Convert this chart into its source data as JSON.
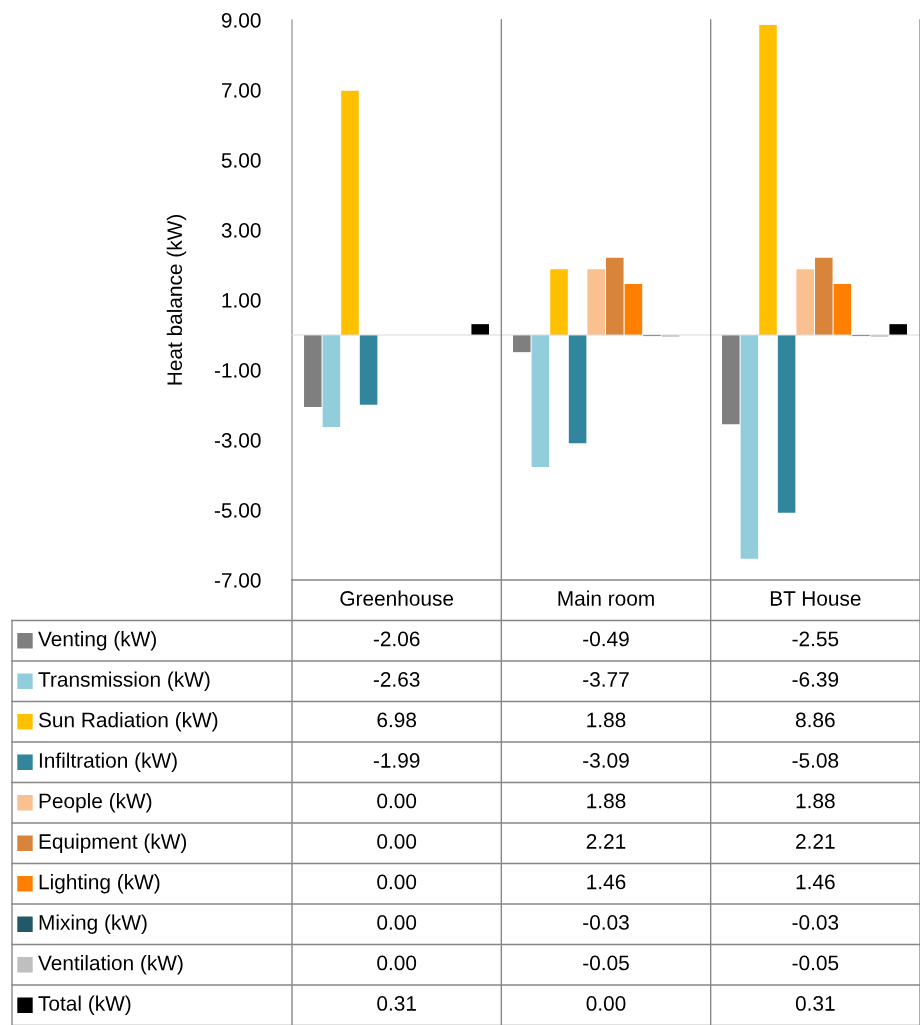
{
  "chart_data": {
    "type": "bar",
    "ylabel": "Heat balance (kW)",
    "categories": [
      "Greenhouse",
      "Main room",
      "BT House"
    ],
    "ylim": [
      -7,
      9
    ],
    "yticks": [
      {
        "value": -7,
        "label": "-7.00"
      },
      {
        "value": -5,
        "label": "-5.00"
      },
      {
        "value": -3,
        "label": "-3.00"
      },
      {
        "value": -1,
        "label": "-1.00"
      },
      {
        "value": 1,
        "label": "1.00"
      },
      {
        "value": 3,
        "label": "3.00"
      },
      {
        "value": 5,
        "label": "5.00"
      },
      {
        "value": 7,
        "label": "7.00"
      },
      {
        "value": 9,
        "label": "9.00"
      }
    ],
    "tick_labels": "y",
    "grid": false,
    "legend": "bottom",
    "series": [
      {
        "name": "Venting (kW)",
        "color": "#7f7f7f",
        "values": [
          -2.06,
          -0.49,
          -2.55
        ],
        "value_labels": [
          "-2.06",
          "-0.49",
          "-2.55"
        ]
      },
      {
        "name": "Transmission (kW)",
        "color": "#92cddc",
        "values": [
          -2.63,
          -3.77,
          -6.39
        ],
        "value_labels": [
          "-2.63",
          "-3.77",
          "-6.39"
        ]
      },
      {
        "name": "Sun Radiation (kW)",
        "color": "#ffc000",
        "values": [
          6.98,
          1.88,
          8.86
        ],
        "value_labels": [
          "6.98",
          "1.88",
          "8.86"
        ]
      },
      {
        "name": "Infiltration (kW)",
        "color": "#31859c",
        "values": [
          -1.99,
          -3.09,
          -5.08
        ],
        "value_labels": [
          "-1.99",
          "-3.09",
          "-5.08"
        ]
      },
      {
        "name": "People (kW)",
        "color": "#fac090",
        "values": [
          0.0,
          1.88,
          1.88
        ],
        "value_labels": [
          "0.00",
          "1.88",
          "1.88"
        ]
      },
      {
        "name": "Equipment (kW)",
        "color": "#d9843b",
        "values": [
          0.0,
          2.21,
          2.21
        ],
        "value_labels": [
          "0.00",
          "2.21",
          "2.21"
        ]
      },
      {
        "name": "Lighting (kW)",
        "color": "#ff8000",
        "values": [
          0.0,
          1.46,
          1.46
        ],
        "value_labels": [
          "0.00",
          "1.46",
          "1.46"
        ]
      },
      {
        "name": "Mixing (kW)",
        "color": "#215967",
        "values": [
          0.0,
          -0.03,
          -0.03
        ],
        "value_labels": [
          "0.00",
          "-0.03",
          "-0.03"
        ]
      },
      {
        "name": "Ventilation (kW)",
        "color": "#bfbfbf",
        "values": [
          0.0,
          -0.05,
          -0.05
        ],
        "value_labels": [
          "0.00",
          "-0.05",
          "-0.05"
        ]
      },
      {
        "name": "Total (kW)",
        "color": "#000000",
        "values": [
          0.31,
          0.0,
          0.31
        ],
        "value_labels": [
          "0.31",
          "0.00",
          "0.31"
        ]
      }
    ]
  }
}
